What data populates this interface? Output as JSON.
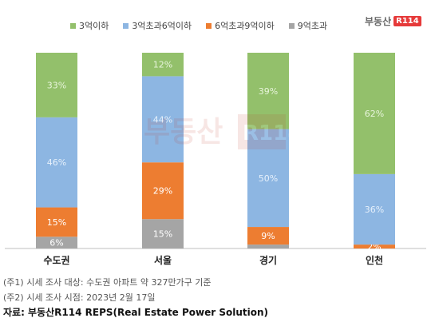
{
  "logo": {
    "text": "부동산",
    "box": "R114"
  },
  "watermark": {
    "text": "부동산",
    "box": "R114"
  },
  "chart_data": {
    "type": "bar",
    "stacked": true,
    "categories": [
      "수도권",
      "서울",
      "경기",
      "인천"
    ],
    "ylim": [
      0,
      100
    ],
    "legend_position": "top",
    "series": [
      {
        "name": "3억이하",
        "color": "#93c06b",
        "values": [
          33,
          12,
          39,
          62
        ]
      },
      {
        "name": "3억초과6억이하",
        "color": "#8db6e2",
        "values": [
          46,
          44,
          50,
          36
        ]
      },
      {
        "name": "6억초과9억이하",
        "color": "#ed7d31",
        "values": [
          15,
          29,
          9,
          2
        ]
      },
      {
        "name": "9억초과",
        "color": "#a5a5a5",
        "values": [
          6,
          15,
          2,
          0
        ]
      }
    ],
    "data_labels": [
      [
        "33%",
        "12%",
        "39%",
        "62%"
      ],
      [
        "46%",
        "44%",
        "50%",
        "36%"
      ],
      [
        "15%",
        "29%",
        "9%",
        "2%"
      ],
      [
        "6%",
        "15%",
        "",
        ""
      ]
    ]
  },
  "notes": {
    "line1": "(주1) 시세 조사 대상: 수도권 아파트 약 327만가구 기준",
    "line2": "(주2) 시세 조사 시점: 2023년 2월 17일",
    "source": "자료: 부동산R114 REPS(Real Estate Power Solution)"
  }
}
